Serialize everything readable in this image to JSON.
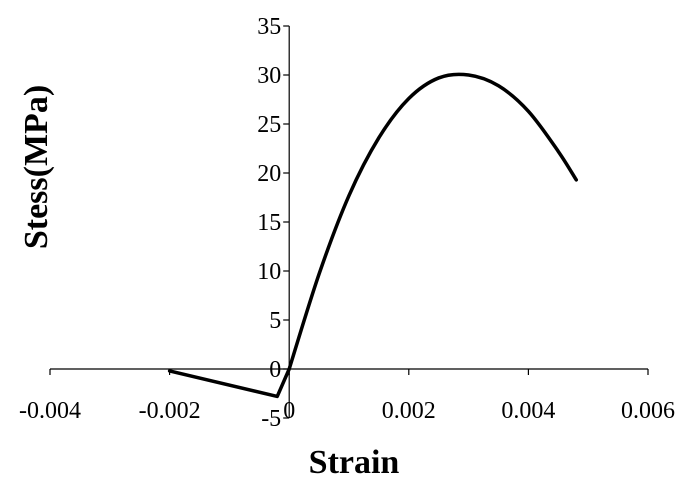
{
  "chart_data": {
    "type": "line",
    "title": "",
    "xlabel": "Strain",
    "ylabel": "Stess(MPa)",
    "xlim": [
      -0.004,
      0.006
    ],
    "ylim": [
      -5,
      35
    ],
    "xticks": [
      -0.004,
      -0.002,
      0,
      0.002,
      0.004,
      0.006
    ],
    "xtick_labels": [
      "-0.004",
      "-0.002",
      "0",
      "0.002",
      "0.004",
      "0.006"
    ],
    "yticks": [
      -5,
      0,
      5,
      10,
      15,
      20,
      25,
      30,
      35
    ],
    "ytick_labels": [
      "-5",
      "0",
      "5",
      "10",
      "15",
      "20",
      "25",
      "30",
      "35"
    ],
    "grid": false,
    "legend": "none",
    "line_color": "#000000",
    "series": [
      {
        "x": [
          -0.002,
          -0.0002,
          0,
          0.0005,
          0.001,
          0.0015,
          0.002,
          0.0025,
          0.003,
          0.0035,
          0.004,
          0.0045,
          0.0048
        ],
        "y": [
          -0.2,
          -2.8,
          0,
          9.7,
          17.7,
          23.6,
          27.6,
          29.7,
          30,
          28.9,
          26.3,
          22.2,
          19.3
        ]
      }
    ]
  }
}
